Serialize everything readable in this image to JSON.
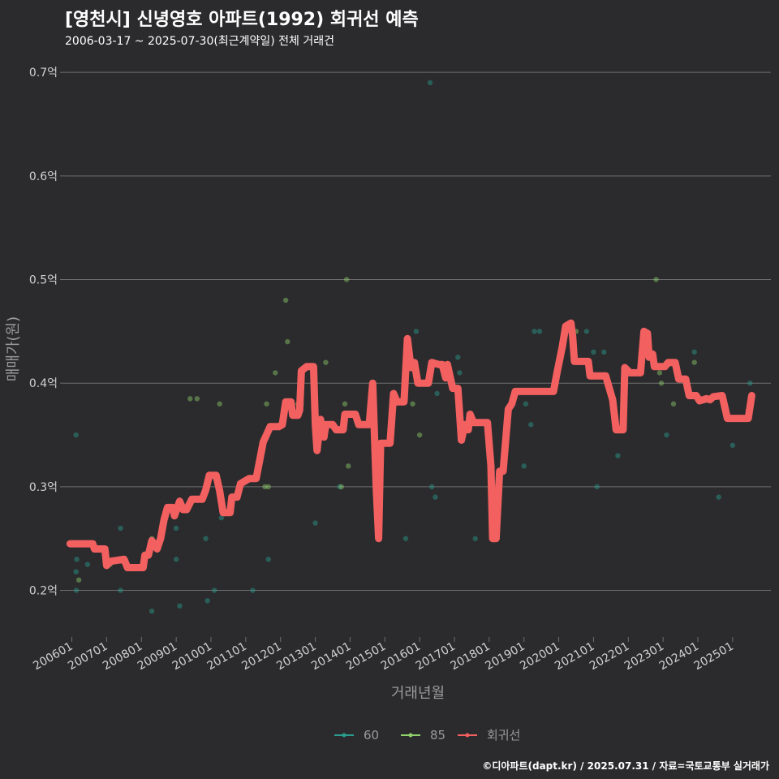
{
  "title": "[영천시] 신녕영호 아파트(1992) 회귀선 예측",
  "subtitle": "2006-03-17 ~ 2025-07-30(최근계약일) 전체 거래건",
  "credit": "©디아파트(dapt.kr) / 2025.07.31 / 자료=국토교통부 실거래가",
  "colors": {
    "background": "#2b2b2d",
    "grid": "#6e6e6e",
    "s60": "#2a9d8f",
    "s85": "#8fd16a",
    "regression": "#f26060"
  },
  "chart_data": {
    "type": "scatter",
    "xlabel": "거래년월",
    "ylabel": "매매가(원)",
    "ylim": [
      0.155,
      0.715
    ],
    "xlim": [
      2005.8,
      2026.1
    ],
    "grid": true,
    "legend_position": "bottom",
    "yticks": [
      {
        "value": 0.2,
        "label": "0.2억"
      },
      {
        "value": 0.3,
        "label": "0.3억"
      },
      {
        "value": 0.4,
        "label": "0.4억"
      },
      {
        "value": 0.5,
        "label": "0.5억"
      },
      {
        "value": 0.6,
        "label": "0.6억"
      },
      {
        "value": 0.7,
        "label": "0.7억"
      }
    ],
    "xticks": [
      {
        "value": 2006,
        "label": "200601"
      },
      {
        "value": 2007,
        "label": "200701"
      },
      {
        "value": 2008,
        "label": "200801"
      },
      {
        "value": 2009,
        "label": "200901"
      },
      {
        "value": 2010,
        "label": "201001"
      },
      {
        "value": 2011,
        "label": "201101"
      },
      {
        "value": 2012,
        "label": "201201"
      },
      {
        "value": 2013,
        "label": "201301"
      },
      {
        "value": 2014,
        "label": "201401"
      },
      {
        "value": 2015,
        "label": "201501"
      },
      {
        "value": 2016,
        "label": "201601"
      },
      {
        "value": 2017,
        "label": "201701"
      },
      {
        "value": 2018,
        "label": "201801"
      },
      {
        "value": 2019,
        "label": "201901"
      },
      {
        "value": 2020,
        "label": "202001"
      },
      {
        "value": 2021,
        "label": "202101"
      },
      {
        "value": 2022,
        "label": "202201"
      },
      {
        "value": 2023,
        "label": "202301"
      },
      {
        "value": 2024,
        "label": "202401"
      },
      {
        "value": 2025,
        "label": "202501"
      }
    ],
    "series": [
      {
        "name": "60",
        "points": [
          [
            2006.12,
            0.35
          ],
          [
            2006.14,
            0.23
          ],
          [
            2006.12,
            0.218
          ],
          [
            2006.13,
            0.2
          ],
          [
            2006.45,
            0.225
          ],
          [
            2007.4,
            0.26
          ],
          [
            2007.4,
            0.2
          ],
          [
            2008.3,
            0.18
          ],
          [
            2009.0,
            0.26
          ],
          [
            2009.0,
            0.23
          ],
          [
            2009.1,
            0.185
          ],
          [
            2009.85,
            0.25
          ],
          [
            2009.9,
            0.19
          ],
          [
            2010.1,
            0.2
          ],
          [
            2010.3,
            0.27
          ],
          [
            2011.2,
            0.2
          ],
          [
            2011.65,
            0.23
          ],
          [
            2012.6,
            0.38
          ],
          [
            2013.0,
            0.265
          ],
          [
            2013.7,
            0.3
          ],
          [
            2015.6,
            0.25
          ],
          [
            2015.9,
            0.45
          ],
          [
            2016.3,
            0.69
          ],
          [
            2016.35,
            0.3
          ],
          [
            2016.45,
            0.29
          ],
          [
            2016.5,
            0.39
          ],
          [
            2017.1,
            0.425
          ],
          [
            2017.15,
            0.41
          ],
          [
            2017.6,
            0.25
          ],
          [
            2019.0,
            0.32
          ],
          [
            2019.05,
            0.38
          ],
          [
            2019.2,
            0.36
          ],
          [
            2019.3,
            0.45
          ],
          [
            2019.45,
            0.45
          ],
          [
            2020.8,
            0.45
          ],
          [
            2021.0,
            0.43
          ],
          [
            2021.1,
            0.3
          ],
          [
            2021.3,
            0.43
          ],
          [
            2021.7,
            0.33
          ],
          [
            2022.0,
            0.41
          ],
          [
            2023.1,
            0.35
          ],
          [
            2023.9,
            0.43
          ],
          [
            2024.6,
            0.29
          ],
          [
            2025.0,
            0.34
          ],
          [
            2025.5,
            0.4
          ]
        ]
      },
      {
        "name": "85",
        "points": [
          [
            2006.2,
            0.21
          ],
          [
            2007.1,
            0.225
          ],
          [
            2008.3,
            0.25
          ],
          [
            2009.4,
            0.385
          ],
          [
            2009.6,
            0.385
          ],
          [
            2010.25,
            0.38
          ],
          [
            2011.55,
            0.3
          ],
          [
            2011.6,
            0.38
          ],
          [
            2011.65,
            0.3
          ],
          [
            2011.85,
            0.41
          ],
          [
            2012.15,
            0.48
          ],
          [
            2012.2,
            0.44
          ],
          [
            2012.5,
            0.38
          ],
          [
            2013.3,
            0.42
          ],
          [
            2013.75,
            0.3
          ],
          [
            2013.85,
            0.38
          ],
          [
            2013.9,
            0.5
          ],
          [
            2013.95,
            0.32
          ],
          [
            2015.8,
            0.38
          ],
          [
            2016.0,
            0.35
          ],
          [
            2020.5,
            0.45
          ],
          [
            2022.8,
            0.5
          ],
          [
            2022.9,
            0.41
          ],
          [
            2022.95,
            0.4
          ],
          [
            2023.3,
            0.38
          ],
          [
            2023.9,
            0.42
          ]
        ]
      }
    ],
    "regression": {
      "name": "회귀선",
      "points": [
        [
          2005.95,
          0.245
        ],
        [
          2006.6,
          0.245
        ],
        [
          2006.65,
          0.24
        ],
        [
          2006.95,
          0.24
        ],
        [
          2007.0,
          0.224
        ],
        [
          2007.1,
          0.228
        ],
        [
          2007.5,
          0.23
        ],
        [
          2007.6,
          0.222
        ],
        [
          2008.05,
          0.222
        ],
        [
          2008.1,
          0.234
        ],
        [
          2008.2,
          0.234
        ],
        [
          2008.3,
          0.248
        ],
        [
          2008.45,
          0.24
        ],
        [
          2008.55,
          0.25
        ],
        [
          2008.65,
          0.268
        ],
        [
          2008.75,
          0.28
        ],
        [
          2008.9,
          0.28
        ],
        [
          2008.95,
          0.272
        ],
        [
          2009.1,
          0.286
        ],
        [
          2009.2,
          0.278
        ],
        [
          2009.3,
          0.278
        ],
        [
          2009.45,
          0.288
        ],
        [
          2009.75,
          0.288
        ],
        [
          2009.85,
          0.297
        ],
        [
          2009.95,
          0.311
        ],
        [
          2010.15,
          0.311
        ],
        [
          2010.25,
          0.296
        ],
        [
          2010.35,
          0.275
        ],
        [
          2010.55,
          0.275
        ],
        [
          2010.6,
          0.29
        ],
        [
          2010.75,
          0.29
        ],
        [
          2010.85,
          0.303
        ],
        [
          2011.1,
          0.308
        ],
        [
          2011.3,
          0.308
        ],
        [
          2011.5,
          0.343
        ],
        [
          2011.7,
          0.358
        ],
        [
          2011.95,
          0.358
        ],
        [
          2012.05,
          0.36
        ],
        [
          2012.15,
          0.382
        ],
        [
          2012.3,
          0.382
        ],
        [
          2012.35,
          0.369
        ],
        [
          2012.5,
          0.369
        ],
        [
          2012.55,
          0.374
        ],
        [
          2012.6,
          0.412
        ],
        [
          2012.75,
          0.416
        ],
        [
          2012.95,
          0.416
        ],
        [
          2013.0,
          0.36
        ],
        [
          2013.05,
          0.335
        ],
        [
          2013.15,
          0.365
        ],
        [
          2013.25,
          0.348
        ],
        [
          2013.3,
          0.36
        ],
        [
          2013.5,
          0.36
        ],
        [
          2013.6,
          0.355
        ],
        [
          2013.8,
          0.355
        ],
        [
          2013.85,
          0.37
        ],
        [
          2014.15,
          0.37
        ],
        [
          2014.25,
          0.36
        ],
        [
          2014.55,
          0.36
        ],
        [
          2014.65,
          0.4
        ],
        [
          2014.75,
          0.3
        ],
        [
          2014.82,
          0.25
        ],
        [
          2014.88,
          0.342
        ],
        [
          2015.15,
          0.342
        ],
        [
          2015.25,
          0.39
        ],
        [
          2015.35,
          0.382
        ],
        [
          2015.55,
          0.382
        ],
        [
          2015.65,
          0.443
        ],
        [
          2015.75,
          0.415
        ],
        [
          2015.85,
          0.42
        ],
        [
          2015.95,
          0.4
        ],
        [
          2016.25,
          0.4
        ],
        [
          2016.35,
          0.42
        ],
        [
          2016.55,
          0.418
        ],
        [
          2016.65,
          0.418
        ],
        [
          2016.75,
          0.405
        ],
        [
          2016.8,
          0.418
        ],
        [
          2016.95,
          0.395
        ],
        [
          2017.1,
          0.395
        ],
        [
          2017.2,
          0.345
        ],
        [
          2017.3,
          0.36
        ],
        [
          2017.4,
          0.355
        ],
        [
          2017.45,
          0.37
        ],
        [
          2017.55,
          0.362
        ],
        [
          2017.95,
          0.362
        ],
        [
          2018.05,
          0.32
        ],
        [
          2018.1,
          0.25
        ],
        [
          2018.2,
          0.25
        ],
        [
          2018.3,
          0.315
        ],
        [
          2018.4,
          0.315
        ],
        [
          2018.55,
          0.375
        ],
        [
          2018.65,
          0.38
        ],
        [
          2018.75,
          0.392
        ],
        [
          2019.85,
          0.392
        ],
        [
          2019.95,
          0.41
        ],
        [
          2020.1,
          0.435
        ],
        [
          2020.2,
          0.455
        ],
        [
          2020.35,
          0.458
        ],
        [
          2020.4,
          0.445
        ],
        [
          2020.45,
          0.421
        ],
        [
          2020.85,
          0.421
        ],
        [
          2020.9,
          0.407
        ],
        [
          2021.35,
          0.407
        ],
        [
          2021.55,
          0.384
        ],
        [
          2021.65,
          0.355
        ],
        [
          2021.85,
          0.355
        ],
        [
          2021.9,
          0.415
        ],
        [
          2022.05,
          0.41
        ],
        [
          2022.35,
          0.41
        ],
        [
          2022.45,
          0.45
        ],
        [
          2022.55,
          0.448
        ],
        [
          2022.6,
          0.425
        ],
        [
          2022.7,
          0.428
        ],
        [
          2022.75,
          0.416
        ],
        [
          2023.05,
          0.416
        ],
        [
          2023.15,
          0.42
        ],
        [
          2023.35,
          0.42
        ],
        [
          2023.45,
          0.404
        ],
        [
          2023.65,
          0.404
        ],
        [
          2023.75,
          0.388
        ],
        [
          2023.95,
          0.388
        ],
        [
          2024.05,
          0.383
        ],
        [
          2024.25,
          0.385
        ],
        [
          2024.35,
          0.384
        ],
        [
          2024.45,
          0.387
        ],
        [
          2024.7,
          0.388
        ],
        [
          2024.85,
          0.366
        ],
        [
          2025.45,
          0.366
        ],
        [
          2025.55,
          0.388
        ]
      ]
    }
  },
  "legend": [
    {
      "label": "60",
      "key": "s60"
    },
    {
      "label": "85",
      "key": "s85"
    },
    {
      "label": "회귀선",
      "key": "regression"
    }
  ]
}
